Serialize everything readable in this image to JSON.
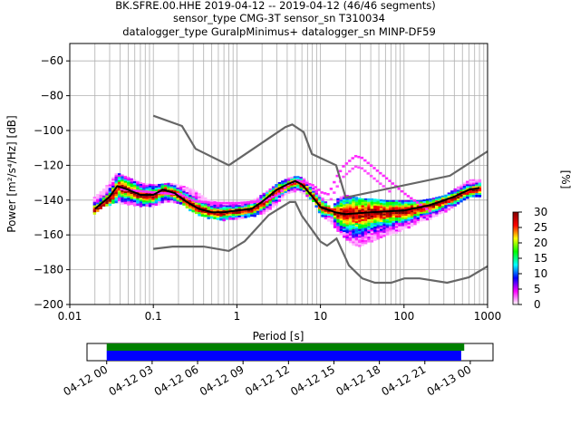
{
  "title_lines": [
    "BK.SFRE.00.HHE   2019-04-12 -- 2019-04-12  (46/46 segments)",
    "sensor_type CMG-3T sensor_sn T310034",
    "datalogger_type GuralpMinimus+ datalogger_sn MINP-DF59"
  ],
  "chart_data": {
    "type": "heatmap",
    "xlabel": "Period [s]",
    "ylabel": "Power [m²/s⁴/Hz] [dB]",
    "xscale": "log",
    "xlim": [
      0.01,
      1000
    ],
    "ylim": [
      -200,
      -50
    ],
    "x_ticks": [
      {
        "v": 0.01,
        "label": "0.01"
      },
      {
        "v": 0.1,
        "label": "0.1"
      },
      {
        "v": 1,
        "label": "1"
      },
      {
        "v": 10,
        "label": "10"
      },
      {
        "v": 100,
        "label": "100"
      },
      {
        "v": 1000,
        "label": "1000"
      }
    ],
    "y_ticks": [
      -60,
      -80,
      -100,
      -120,
      -140,
      -160,
      -180,
      -200
    ],
    "grid": true,
    "colorbar": {
      "label": "[%]",
      "min": 0,
      "max": 30,
      "ticks": [
        0,
        5,
        10,
        15,
        20,
        25,
        30
      ],
      "stops": [
        "#ffffff",
        "#ff00ff",
        "#0000ff",
        "#00ffff",
        "#00ff00",
        "#ffff00",
        "#ff0000",
        "#800000"
      ]
    },
    "noise_models": [
      {
        "name": "NHNM",
        "color": "#666666",
        "points": [
          [
            0.1,
            -91.5
          ],
          [
            0.22,
            -97.4
          ],
          [
            0.32,
            -110.5
          ],
          [
            0.8,
            -120
          ],
          [
            3.8,
            -98
          ],
          [
            4.6,
            -96.5
          ],
          [
            6.3,
            -101
          ],
          [
            7.9,
            -113.5
          ],
          [
            15.4,
            -120
          ],
          [
            20,
            -138.5
          ],
          [
            354.8,
            -126
          ],
          [
            1000,
            -112
          ]
        ]
      },
      {
        "name": "NLNM",
        "color": "#666666",
        "points": [
          [
            0.1,
            -168
          ],
          [
            0.17,
            -166.7
          ],
          [
            0.4,
            -166.7
          ],
          [
            0.8,
            -169.2
          ],
          [
            1.24,
            -163.7
          ],
          [
            2.4,
            -148.6
          ],
          [
            4.3,
            -141.1
          ],
          [
            5,
            -141.1
          ],
          [
            6,
            -149
          ],
          [
            10,
            -163.8
          ],
          [
            12,
            -166.2
          ],
          [
            15.6,
            -162.1
          ],
          [
            21.9,
            -177.5
          ],
          [
            31.6,
            -185
          ],
          [
            45,
            -187.5
          ],
          [
            70,
            -187.5
          ],
          [
            101,
            -185
          ],
          [
            154,
            -185
          ],
          [
            328,
            -187.5
          ],
          [
            600,
            -184.4
          ],
          [
            1000,
            -178
          ]
        ]
      }
    ],
    "mode": {
      "name": "mode",
      "color": "#000000",
      "points": [
        [
          0.02,
          -145
        ],
        [
          0.03,
          -138
        ],
        [
          0.037,
          -132
        ],
        [
          0.05,
          -134
        ],
        [
          0.07,
          -137
        ],
        [
          0.1,
          -137
        ],
        [
          0.13,
          -134
        ],
        [
          0.18,
          -136
        ],
        [
          0.25,
          -141
        ],
        [
          0.35,
          -145
        ],
        [
          0.5,
          -147
        ],
        [
          0.7,
          -147
        ],
        [
          1,
          -146
        ],
        [
          1.5,
          -145
        ],
        [
          2,
          -141
        ],
        [
          3,
          -134
        ],
        [
          4,
          -131
        ],
        [
          5,
          -129
        ],
        [
          6,
          -131
        ],
        [
          8,
          -138
        ],
        [
          10,
          -144
        ],
        [
          15,
          -147
        ],
        [
          20,
          -148
        ],
        [
          40,
          -147
        ],
        [
          100,
          -146
        ],
        [
          200,
          -143
        ],
        [
          400,
          -138
        ],
        [
          600,
          -134
        ],
        [
          800,
          -133
        ]
      ]
    },
    "pdf_band": {
      "x": [
        0.019,
        0.025,
        0.035,
        0.05,
        0.07,
        0.1,
        0.15,
        0.2,
        0.3,
        0.45,
        0.7,
        1,
        1.5,
        2,
        3,
        4,
        5,
        6,
        8,
        10,
        13,
        16,
        20,
        25,
        30,
        40,
        60,
        80,
        100,
        150,
        200,
        300,
        400,
        500,
        600,
        800
      ],
      "upper": [
        -138,
        -133,
        -124,
        -127,
        -130,
        -131,
        -130,
        -131,
        -134,
        -140,
        -142,
        -142,
        -140,
        -136,
        -130,
        -127,
        -126,
        -127,
        -132,
        -138,
        -145,
        -138,
        -137,
        -138,
        -139,
        -139,
        -140,
        -140,
        -140,
        -140,
        -139,
        -137,
        -133,
        -130,
        -128,
        -128
      ],
      "lower": [
        -147,
        -143,
        -141,
        -142,
        -143,
        -143,
        -140,
        -141,
        -147,
        -150,
        -151,
        -150,
        -149,
        -147,
        -141,
        -135,
        -134,
        -135,
        -141,
        -149,
        -153,
        -158,
        -162,
        -166,
        -166,
        -163,
        -160,
        -158,
        -156,
        -152,
        -150,
        -146,
        -142,
        -139,
        -137,
        -137
      ]
    },
    "sparse_upper_trace": {
      "x": [
        0.04,
        0.06,
        0.1,
        0.2,
        0.3,
        0.5,
        1,
        2,
        3,
        4,
        5,
        6,
        8,
        10,
        12,
        15,
        18,
        20,
        25,
        30,
        40,
        60,
        100,
        200
      ],
      "y": [
        -133,
        -134,
        -135,
        -136,
        -140,
        -141,
        -141,
        -140,
        -136,
        -130,
        -128,
        -129,
        -131,
        -135,
        -136,
        -126,
        -120,
        -118,
        -114,
        -115,
        -120,
        -127,
        -136,
        -146
      ]
    },
    "time_coverage": {
      "ticks": [
        "04-12 00",
        "04-12 03",
        "04-12 06",
        "04-12 09",
        "04-12 12",
        "04-12 15",
        "04-12 18",
        "04-12 21",
        "04-13 00"
      ],
      "range_hours": [
        -1.3,
        25.5
      ],
      "bars": [
        {
          "name": "data",
          "color": "#008000",
          "start": 0,
          "end": 23.6
        },
        {
          "name": "used",
          "color": "#0000ff",
          "start": 0,
          "end": 23.4
        }
      ]
    }
  }
}
